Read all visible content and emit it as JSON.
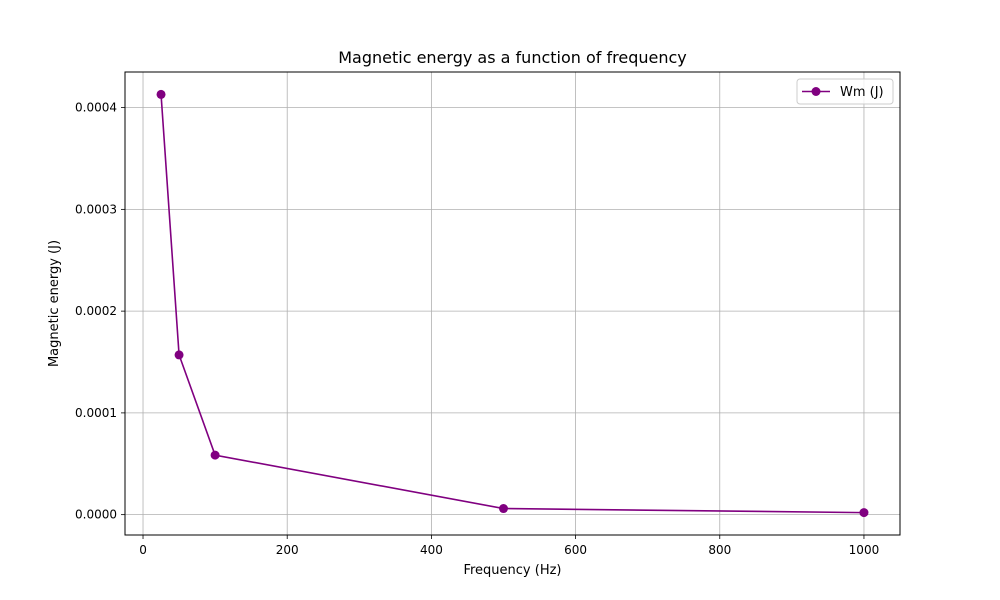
{
  "chart_data": {
    "type": "line",
    "title": "Magnetic energy as a function of frequency",
    "xlabel": "Frequency (Hz)",
    "ylabel": "Magnetic energy (J)",
    "xlim": [
      -25,
      1050
    ],
    "ylim": [
      -2e-05,
      0.000435
    ],
    "xticks": [
      0,
      200,
      400,
      600,
      800,
      1000
    ],
    "yticks": [
      0.0,
      0.0001,
      0.0002,
      0.0003,
      0.0004
    ],
    "ytick_labels": [
      "0.0000",
      "0.0001",
      "0.0002",
      "0.0003",
      "0.0004"
    ],
    "grid": true,
    "legend": "top-right",
    "series": [
      {
        "name": "Wm (J)",
        "color": "#800080",
        "marker": "circle",
        "x": [
          25,
          50,
          100,
          500,
          1000
        ],
        "y": [
          0.000413,
          0.000157,
          5.85e-05,
          6e-06,
          2e-06
        ]
      }
    ]
  }
}
